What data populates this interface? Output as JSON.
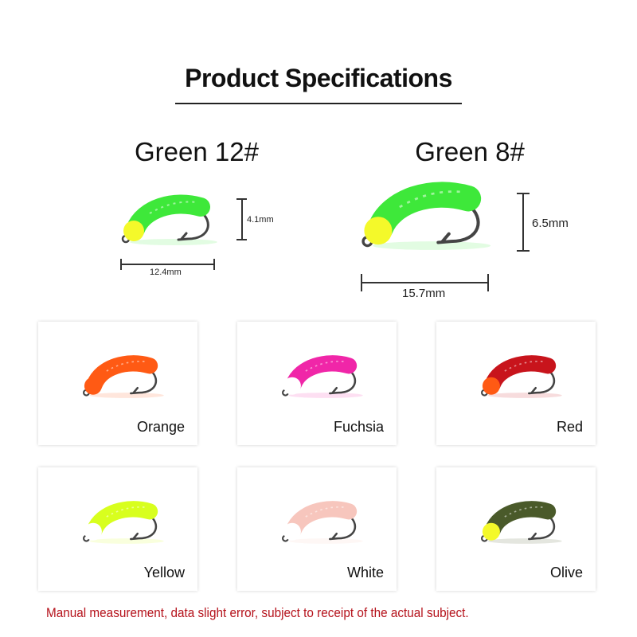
{
  "header": {
    "title": "Product Specifications"
  },
  "sizes": [
    {
      "name": "Green 12#",
      "length": "12.4mm",
      "height": "4.1mm",
      "body_color": "#3ee83a",
      "head_color": "#f4f92a"
    },
    {
      "name": "Green 8#",
      "length": "15.7mm",
      "height": "6.5mm",
      "body_color": "#3ee83a",
      "head_color": "#f4f92a"
    }
  ],
  "variants": [
    {
      "label": "Orange",
      "body_color": "#ff5a14",
      "head_color": "#ff5a14"
    },
    {
      "label": "Fuchsia",
      "body_color": "#f026a8",
      "head_color": "#ffffff"
    },
    {
      "label": "Red",
      "body_color": "#c8141c",
      "head_color": "#ff5a14"
    },
    {
      "label": "Yellow",
      "body_color": "#d8ff1e",
      "head_color": "#ffffff"
    },
    {
      "label": "White",
      "body_color": "#f7c6bd",
      "head_color": "#ffffff"
    },
    {
      "label": "Olive",
      "body_color": "#4a5a2a",
      "head_color": "#f4f92a"
    }
  ],
  "footer": {
    "note": "Manual measurement, data slight error, subject to receipt of the actual subject."
  }
}
